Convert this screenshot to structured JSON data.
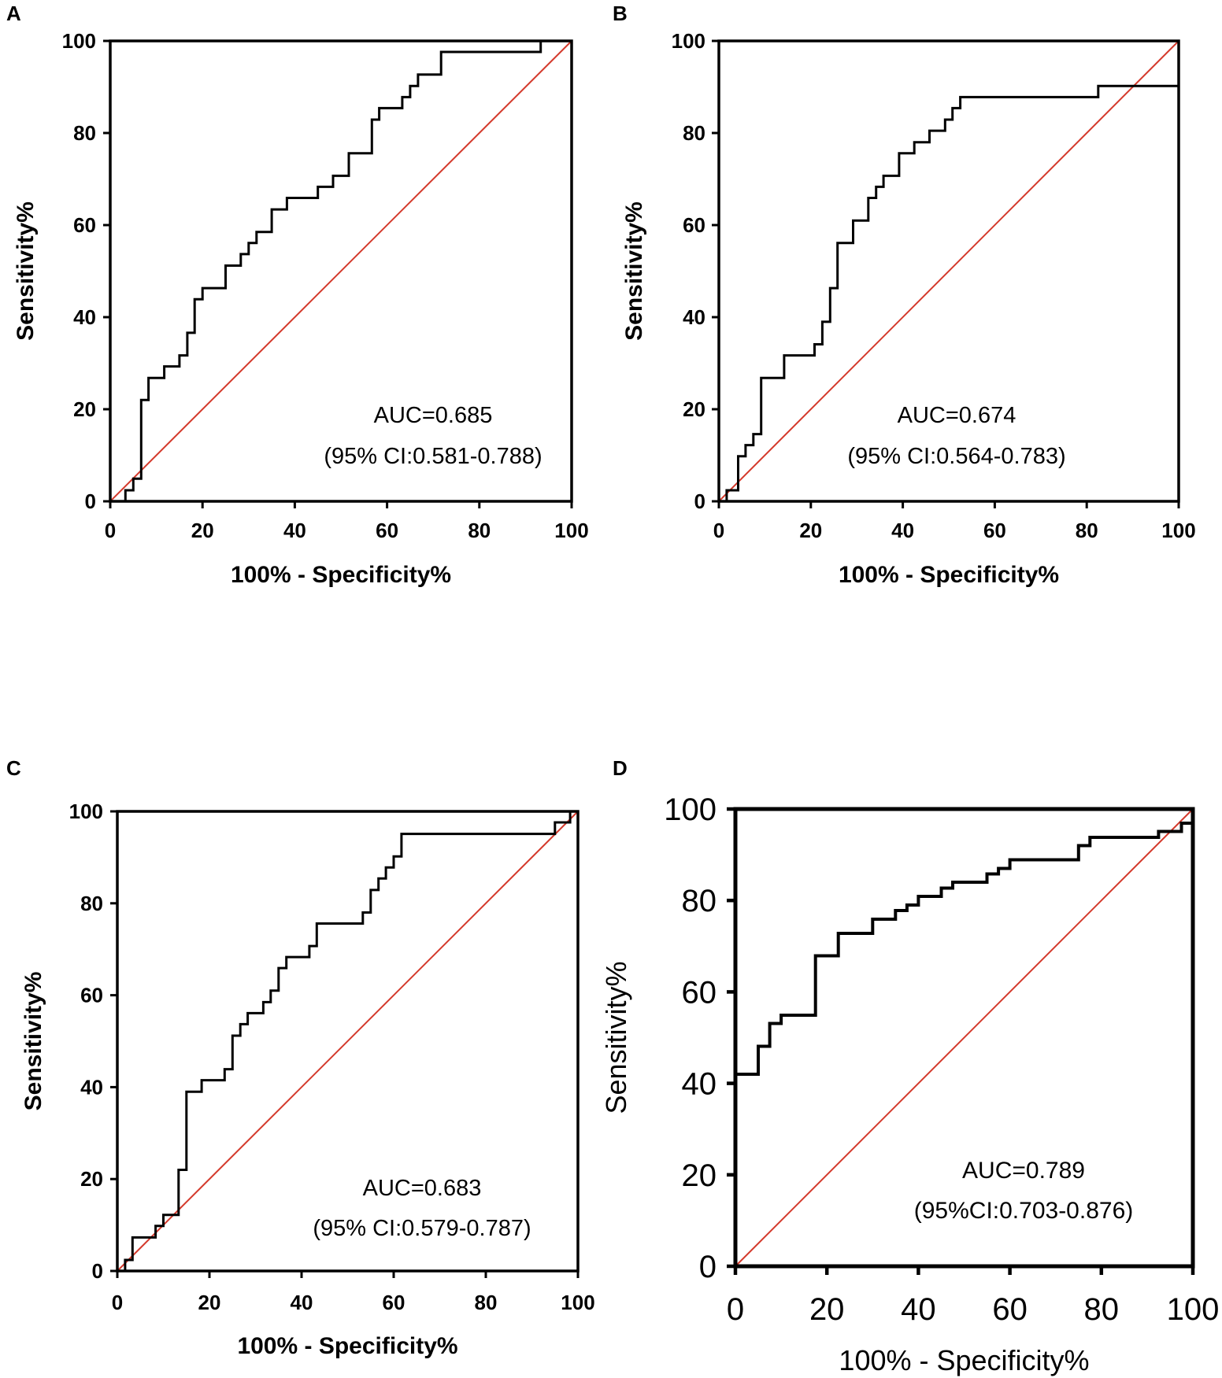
{
  "chart_data": [
    {
      "type": "line",
      "panel": "A",
      "xlabel": "100% - Specificity%",
      "ylabel": "Sensitivity%",
      "xlim": [
        0,
        100
      ],
      "ylim": [
        0,
        100
      ],
      "x_ticks": [
        "0",
        "20",
        "40",
        "60",
        "80",
        "100"
      ],
      "y_ticks": [
        "0",
        "20",
        "40",
        "60",
        "80",
        "100"
      ],
      "annotations": [
        "AUC=0.685",
        "(95% CI:0.581-0.788)"
      ],
      "reference_line_color": "#d43a2c",
      "series": [
        {
          "name": "ROC",
          "color": "#000000",
          "points": [
            [
              3.3,
              0
            ],
            [
              3.3,
              2.4
            ],
            [
              5,
              2.4
            ],
            [
              5,
              4.9
            ],
            [
              6.7,
              4.9
            ],
            [
              6.7,
              22
            ],
            [
              8.3,
              22
            ],
            [
              8.3,
              26.8
            ],
            [
              11.7,
              26.8
            ],
            [
              11.7,
              29.3
            ],
            [
              15,
              29.3
            ],
            [
              15,
              31.7
            ],
            [
              16.7,
              31.7
            ],
            [
              16.7,
              36.6
            ],
            [
              18.3,
              36.6
            ],
            [
              18.3,
              43.9
            ],
            [
              20,
              43.9
            ],
            [
              20,
              46.3
            ],
            [
              25,
              46.3
            ],
            [
              25,
              51.2
            ],
            [
              28.3,
              51.2
            ],
            [
              28.3,
              53.7
            ],
            [
              30,
              53.7
            ],
            [
              30,
              56.1
            ],
            [
              31.7,
              56.1
            ],
            [
              31.7,
              58.5
            ],
            [
              35,
              58.5
            ],
            [
              35,
              63.4
            ],
            [
              38.3,
              63.4
            ],
            [
              38.3,
              65.9
            ],
            [
              45,
              65.9
            ],
            [
              45,
              68.3
            ],
            [
              48.3,
              68.3
            ],
            [
              48.3,
              70.7
            ],
            [
              51.7,
              70.7
            ],
            [
              51.7,
              75.6
            ],
            [
              56.7,
              75.6
            ],
            [
              56.7,
              82.9
            ],
            [
              58.3,
              82.9
            ],
            [
              58.3,
              85.4
            ],
            [
              63.3,
              85.4
            ],
            [
              63.3,
              87.8
            ],
            [
              65,
              87.8
            ],
            [
              65,
              90.2
            ],
            [
              66.7,
              90.2
            ],
            [
              66.7,
              92.7
            ],
            [
              71.7,
              92.7
            ],
            [
              71.7,
              97.6
            ],
            [
              93.3,
              97.6
            ],
            [
              93.3,
              100
            ],
            [
              100,
              100
            ]
          ]
        }
      ]
    },
    {
      "type": "line",
      "panel": "B",
      "xlabel": "100% - Specificity%",
      "ylabel": "Sensitivity%",
      "xlim": [
        0,
        100
      ],
      "ylim": [
        0,
        100
      ],
      "x_ticks": [
        "0",
        "20",
        "40",
        "60",
        "80",
        "100"
      ],
      "y_ticks": [
        "0",
        "20",
        "40",
        "60",
        "80",
        "100"
      ],
      "annotations": [
        "AUC=0.674",
        "(95% CI:0.564-0.783)"
      ],
      "reference_line_color": "#d43a2c",
      "series": [
        {
          "name": "ROC",
          "color": "#000000",
          "points": [
            [
              0,
              0
            ],
            [
              1.7,
              0
            ],
            [
              1.7,
              2.4
            ],
            [
              4.2,
              2.4
            ],
            [
              4.2,
              9.8
            ],
            [
              5.8,
              9.8
            ],
            [
              5.8,
              12.2
            ],
            [
              7.5,
              12.2
            ],
            [
              7.5,
              14.6
            ],
            [
              9.2,
              14.6
            ],
            [
              9.2,
              26.8
            ],
            [
              14.2,
              26.8
            ],
            [
              14.2,
              31.7
            ],
            [
              20.8,
              31.7
            ],
            [
              20.8,
              34.1
            ],
            [
              22.5,
              34.1
            ],
            [
              22.5,
              39
            ],
            [
              24.2,
              39
            ],
            [
              24.2,
              46.3
            ],
            [
              25.8,
              46.3
            ],
            [
              25.8,
              56.1
            ],
            [
              29.2,
              56.1
            ],
            [
              29.2,
              61
            ],
            [
              32.5,
              61
            ],
            [
              32.5,
              65.9
            ],
            [
              34.2,
              65.9
            ],
            [
              34.2,
              68.3
            ],
            [
              35.8,
              68.3
            ],
            [
              35.8,
              70.7
            ],
            [
              39.2,
              70.7
            ],
            [
              39.2,
              75.6
            ],
            [
              42.5,
              75.6
            ],
            [
              42.5,
              78
            ],
            [
              45.8,
              78
            ],
            [
              45.8,
              80.5
            ],
            [
              49.2,
              80.5
            ],
            [
              49.2,
              82.9
            ],
            [
              50.8,
              82.9
            ],
            [
              50.8,
              85.4
            ],
            [
              52.5,
              85.4
            ],
            [
              52.5,
              87.8
            ],
            [
              82.5,
              87.8
            ],
            [
              82.5,
              90.2
            ],
            [
              100,
              90.2
            ],
            [
              100,
              100
            ]
          ]
        }
      ]
    },
    {
      "type": "line",
      "panel": "C",
      "xlabel": "100% - Specificity%",
      "ylabel": "Sensitivity%",
      "xlim": [
        0,
        100
      ],
      "ylim": [
        0,
        100
      ],
      "x_ticks": [
        "0",
        "20",
        "40",
        "60",
        "80",
        "100"
      ],
      "y_ticks": [
        "0",
        "20",
        "40",
        "60",
        "80",
        "100"
      ],
      "annotations": [
        "AUC=0.683",
        "(95% CI:0.579-0.787)"
      ],
      "reference_line_color": "#d43a2c",
      "series": [
        {
          "name": "ROC",
          "color": "#000000",
          "points": [
            [
              0,
              0
            ],
            [
              1.7,
              0
            ],
            [
              1.7,
              2.4
            ],
            [
              3.3,
              2.4
            ],
            [
              3.3,
              7.3
            ],
            [
              8.3,
              7.3
            ],
            [
              8.3,
              9.8
            ],
            [
              10,
              9.8
            ],
            [
              10,
              12.2
            ],
            [
              13.3,
              12.2
            ],
            [
              13.3,
              22
            ],
            [
              15,
              22
            ],
            [
              15,
              39
            ],
            [
              18.3,
              39
            ],
            [
              18.3,
              41.5
            ],
            [
              23.3,
              41.5
            ],
            [
              23.3,
              43.9
            ],
            [
              25,
              43.9
            ],
            [
              25,
              51.2
            ],
            [
              26.7,
              51.2
            ],
            [
              26.7,
              53.7
            ],
            [
              28.3,
              53.7
            ],
            [
              28.3,
              56.1
            ],
            [
              31.7,
              56.1
            ],
            [
              31.7,
              58.5
            ],
            [
              33.3,
              58.5
            ],
            [
              33.3,
              61
            ],
            [
              35,
              61
            ],
            [
              35,
              65.9
            ],
            [
              36.7,
              65.9
            ],
            [
              36.7,
              68.3
            ],
            [
              41.7,
              68.3
            ],
            [
              41.7,
              70.7
            ],
            [
              43.3,
              70.7
            ],
            [
              43.3,
              75.6
            ],
            [
              53.3,
              75.6
            ],
            [
              53.3,
              78
            ],
            [
              55,
              78
            ],
            [
              55,
              82.9
            ],
            [
              56.7,
              82.9
            ],
            [
              56.7,
              85.4
            ],
            [
              58.3,
              85.4
            ],
            [
              58.3,
              87.8
            ],
            [
              60,
              87.8
            ],
            [
              60,
              90.2
            ],
            [
              61.7,
              90.2
            ],
            [
              61.7,
              95.1
            ],
            [
              95,
              95.1
            ],
            [
              95,
              97.6
            ],
            [
              98.3,
              97.6
            ],
            [
              98.3,
              100
            ],
            [
              100,
              100
            ]
          ]
        }
      ]
    },
    {
      "type": "line",
      "panel": "D",
      "xlabel": "100% - Specificity%",
      "ylabel": "Sensitivity%",
      "xlim": [
        0,
        100
      ],
      "ylim": [
        0,
        100
      ],
      "x_ticks": [
        "0",
        "20",
        "40",
        "60",
        "80",
        "100"
      ],
      "y_ticks": [
        "0",
        "20",
        "40",
        "60",
        "80",
        "100"
      ],
      "annotations": [
        "AUC=0.789",
        "(95%CI:0.703-0.876)"
      ],
      "reference_line_color": "#d43a2c",
      "series": [
        {
          "name": "ROC",
          "color": "#000000",
          "points": [
            [
              0,
              42
            ],
            [
              5,
              42
            ],
            [
              5,
              48.1
            ],
            [
              7.5,
              48.1
            ],
            [
              7.5,
              53.1
            ],
            [
              10,
              53.1
            ],
            [
              10,
              54.9
            ],
            [
              17.5,
              54.9
            ],
            [
              17.5,
              67.9
            ],
            [
              22.5,
              67.9
            ],
            [
              22.5,
              72.8
            ],
            [
              30,
              72.8
            ],
            [
              30,
              75.9
            ],
            [
              35,
              75.9
            ],
            [
              35,
              77.8
            ],
            [
              37.5,
              77.8
            ],
            [
              37.5,
              79
            ],
            [
              40,
              79
            ],
            [
              40,
              80.9
            ],
            [
              45,
              80.9
            ],
            [
              45,
              82.7
            ],
            [
              47.5,
              82.7
            ],
            [
              47.5,
              84
            ],
            [
              55,
              84
            ],
            [
              55,
              85.8
            ],
            [
              57.5,
              85.8
            ],
            [
              57.5,
              87
            ],
            [
              60,
              87
            ],
            [
              60,
              88.9
            ],
            [
              75,
              88.9
            ],
            [
              75,
              92
            ],
            [
              77.5,
              92
            ],
            [
              77.5,
              93.8
            ],
            [
              92.5,
              93.8
            ],
            [
              92.5,
              95.1
            ],
            [
              97.5,
              95.1
            ],
            [
              97.5,
              96.9
            ],
            [
              100,
              96.9
            ],
            [
              100,
              100
            ]
          ]
        }
      ]
    }
  ]
}
